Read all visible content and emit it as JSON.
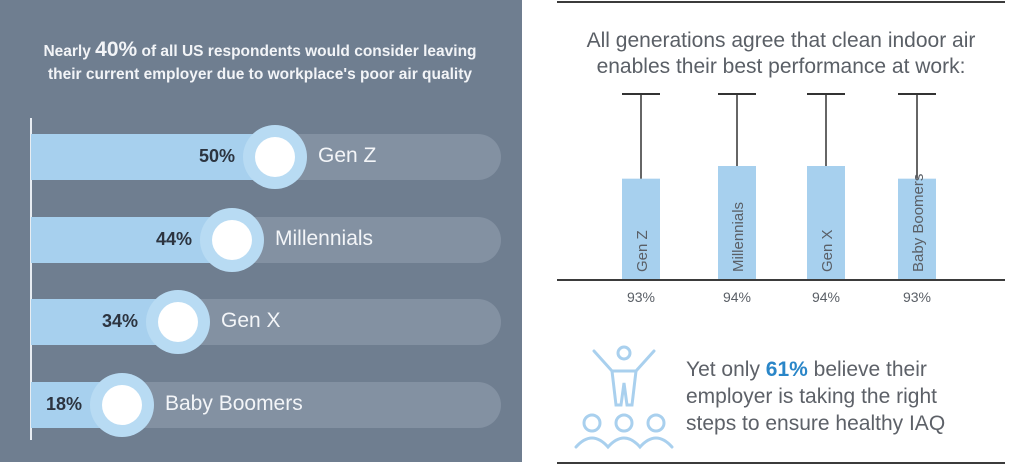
{
  "left_panel": {
    "title_prefix": "Nearly ",
    "title_highlight": "40%",
    "title_suffix": " of all US respondents would consider leaving their current employer due to workplace's poor air quality"
  },
  "right_panel": {
    "title": "All generations agree that clean indoor air enables their best performance at work:",
    "callout_prefix": "Yet only ",
    "callout_highlight": "61%",
    "callout_suffix": " believe their employer is taking the right steps to ensure healthy IAQ",
    "icon": "person-cheering-crowd-icon"
  },
  "colors": {
    "panel": "#6f7e90",
    "bar": "#a7d0ee",
    "highlight": "#2a86c8"
  },
  "chart_data": [
    {
      "type": "bar",
      "orientation": "horizontal",
      "title": "Nearly 40% of all US respondents would consider leaving their current employer due to workplace's poor air quality",
      "categories": [
        "Gen Z",
        "Millennials",
        "Gen X",
        "Baby Boomers"
      ],
      "values": [
        50,
        44,
        34,
        18
      ],
      "labels": [
        "50%",
        "44%",
        "34%",
        "18%"
      ],
      "xlim": [
        0,
        100
      ]
    },
    {
      "type": "bar",
      "orientation": "vertical",
      "title": "All generations agree that clean indoor air enables their best performance at work:",
      "categories": [
        "Gen Z",
        "Millennials",
        "Gen X",
        "Baby Boomers"
      ],
      "values": [
        93,
        94,
        94,
        93
      ],
      "labels": [
        "93%",
        "94%",
        "94%",
        "93%"
      ],
      "error_bars": true,
      "ylim": [
        0,
        100
      ]
    }
  ]
}
